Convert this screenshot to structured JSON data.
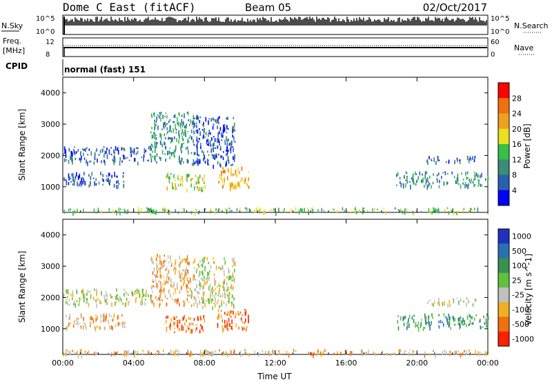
{
  "header": {
    "station": "Dome C East (fitACF)",
    "beam": "Beam 05",
    "date": "02/Oct/2017"
  },
  "status_panels": {
    "nsky_label": "N.Sky",
    "nsearch_label": "N.Search",
    "freq_label_top": "Freq.",
    "freq_label_bottom": "[MHz]",
    "nave_label": "Nave",
    "cpid_label": "CPID",
    "cpid_value": "normal (fast) 151",
    "noise_ticks_left": [
      "10^5",
      "10^0"
    ],
    "noise_ticks_right": [
      "10^5",
      "10^0"
    ],
    "freq_ticks": [
      "12",
      "8"
    ],
    "nave_ticks": [
      "60",
      "0"
    ],
    "colors": {
      "noise_trace": "#000000"
    }
  },
  "chart_data": [
    {
      "type": "heatmap",
      "title": "",
      "xlabel": "",
      "ylabel": "Slant Range [km]",
      "xlim": [
        0,
        24
      ],
      "ylim": [
        180,
        4500
      ],
      "x_tick_labels": [
        "00:00",
        "04:00",
        "08:00",
        "12:00",
        "16:00",
        "20:00",
        "00:00"
      ],
      "y_ticks": [
        1000,
        2000,
        3000,
        4000
      ],
      "colorbar": {
        "label": "Power [dB]",
        "ticks": [
          "4",
          "8",
          "12",
          "16",
          "20",
          "24",
          "28"
        ],
        "colors": [
          "#0000ff",
          "#2a5fb0",
          "#3c8c78",
          "#36c046",
          "#e8e020",
          "#f0a020",
          "#f07010",
          "#ff0000"
        ]
      },
      "echo_regions_x_hours_y_km": [
        {
          "x": [
            0.0,
            5.0
          ],
          "y": [
            1800,
            2300
          ],
          "level": 1
        },
        {
          "x": [
            4.9,
            7.2
          ],
          "y": [
            1800,
            3400
          ],
          "level": 2
        },
        {
          "x": [
            7.2,
            9.7
          ],
          "y": [
            1700,
            3300
          ],
          "level": 1
        },
        {
          "x": [
            0.0,
            3.5
          ],
          "y": [
            1050,
            1500
          ],
          "level": 1
        },
        {
          "x": [
            5.8,
            8.0
          ],
          "y": [
            900,
            1450
          ],
          "level": 4
        },
        {
          "x": [
            8.7,
            10.5
          ],
          "y": [
            1000,
            1650
          ],
          "level": 5
        },
        {
          "x": [
            18.8,
            24.0
          ],
          "y": [
            1050,
            1500
          ],
          "level": 2
        },
        {
          "x": [
            20.5,
            23.3
          ],
          "y": [
            1800,
            2000
          ],
          "level": 1
        },
        {
          "x": [
            0.0,
            24.0
          ],
          "y": [
            200,
            350
          ],
          "level": 3
        }
      ]
    },
    {
      "type": "heatmap",
      "title": "",
      "xlabel": "Time UT",
      "ylabel": "Slant Range [km]",
      "xlim": [
        0,
        24
      ],
      "ylim": [
        180,
        4500
      ],
      "x_tick_labels": [
        "00:00",
        "04:00",
        "08:00",
        "12:00",
        "16:00",
        "20:00",
        "00:00"
      ],
      "y_ticks": [
        1000,
        2000,
        3000,
        4000
      ],
      "colorbar": {
        "label": "Velocity [m s^-1]",
        "ticks": [
          "1000",
          "500",
          "100",
          "25",
          "-25",
          "-100",
          "-500",
          "-1000"
        ],
        "colors": [
          "#2030c0",
          "#2a70b0",
          "#3a9050",
          "#60c040",
          "#c0c0c0",
          "#f0b020",
          "#f07010",
          "#ff2000"
        ]
      },
      "echo_regions_x_hours_y_km": [
        {
          "x": [
            0.0,
            5.0
          ],
          "y": [
            1800,
            2300
          ],
          "level": 4
        },
        {
          "x": [
            4.9,
            7.2
          ],
          "y": [
            1800,
            3400
          ],
          "level": 5
        },
        {
          "x": [
            7.2,
            9.7
          ],
          "y": [
            1700,
            3300
          ],
          "level": 4
        },
        {
          "x": [
            0.0,
            3.5
          ],
          "y": [
            1050,
            1500
          ],
          "level": 5
        },
        {
          "x": [
            5.8,
            8.0
          ],
          "y": [
            900,
            1450
          ],
          "level": 6
        },
        {
          "x": [
            8.7,
            10.5
          ],
          "y": [
            1000,
            1650
          ],
          "level": 6
        },
        {
          "x": [
            18.8,
            24.0
          ],
          "y": [
            1050,
            1500
          ],
          "level": 2
        },
        {
          "x": [
            20.5,
            23.3
          ],
          "y": [
            1800,
            2000
          ],
          "level": 4
        },
        {
          "x": [
            0.0,
            24.0
          ],
          "y": [
            200,
            350
          ],
          "level": 5
        }
      ]
    }
  ]
}
